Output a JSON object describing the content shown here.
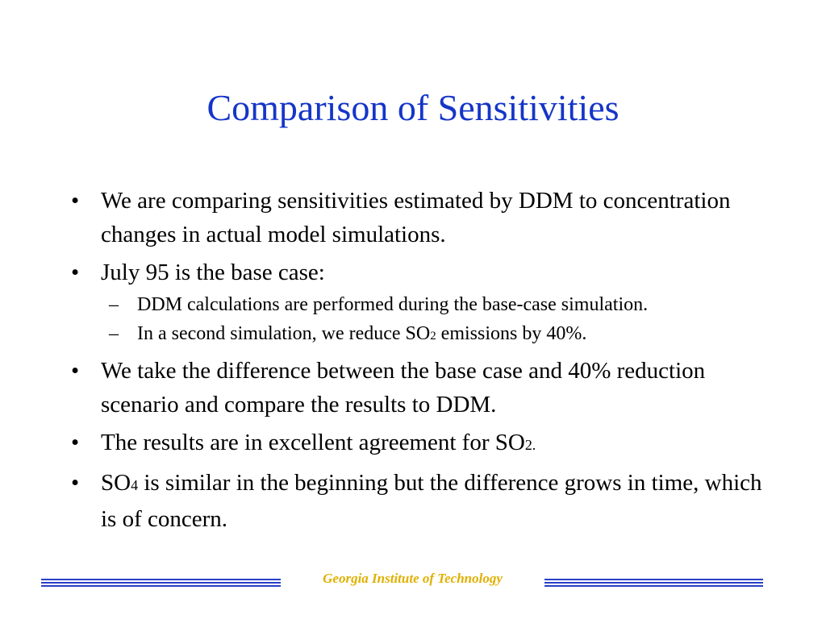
{
  "slide": {
    "title": "Comparison of Sensitivities",
    "bullet_marker": "•",
    "sub_bullet_marker": "–",
    "bullets": [
      {
        "text": "We are comparing sensitivities estimated by DDM to concentration changes in actual model simulations."
      },
      {
        "text": "July 95 is the base case:",
        "sub_bullets": [
          {
            "text": "DDM calculations are performed during the base-case simulation."
          },
          {
            "text_before": "In a second simulation, we reduce SO",
            "subscript": "2",
            "text_after": " emissions by 40%."
          }
        ]
      },
      {
        "text": "We take the difference between the base case and 40% reduction scenario and compare the results to DDM."
      },
      {
        "text_before": "The results are in excellent agreement for SO",
        "subscript": "2.",
        "text_after": ""
      },
      {
        "text_before": "SO",
        "subscript": "4",
        "text_after": " is similar in the beginning but the difference grows in time, which is of concern."
      }
    ]
  },
  "footer": {
    "institution": "Georgia Institute of Technology"
  },
  "colors": {
    "title": "#1535c8",
    "footer_lines": "#2a3fc6",
    "footer_text": "#e0b000",
    "body_text": "#000000"
  }
}
